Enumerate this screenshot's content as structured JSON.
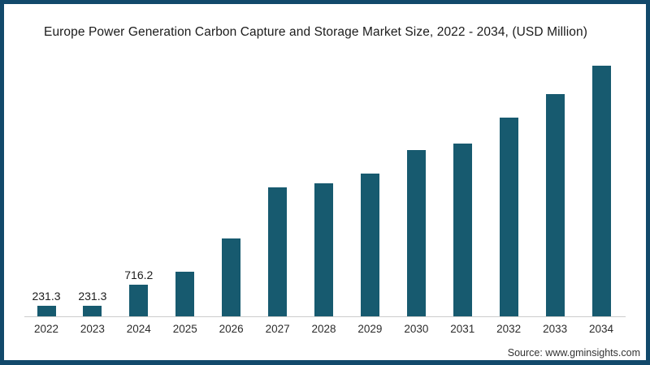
{
  "title": "Europe Power Generation Carbon Capture and Storage Market Size, 2022 - 2034, (USD Million)",
  "source_note": "Source: www.gminsights.com",
  "colors": {
    "bar": "#175a6f",
    "frame": "#12496b",
    "axis_line": "#cccccc",
    "background": "#ffffff",
    "title_text": "#1b1b1b"
  },
  "chart_data": {
    "type": "bar",
    "title": "Europe Power Generation Carbon Capture and Storage Market Size, 2022 - 2034, (USD Million)",
    "categories": [
      "2022",
      "2023",
      "2024",
      "2025",
      "2026",
      "2027",
      "2028",
      "2029",
      "2030",
      "2031",
      "2032",
      "2033",
      "2034"
    ],
    "values": [
      231.3,
      231.3,
      716.2,
      1010,
      1765,
      2920,
      3030,
      3250,
      3770,
      3920,
      4520,
      5040,
      5690
    ],
    "data_labels": [
      "231.3",
      "231.3",
      "716.2",
      "",
      "",
      "",
      "",
      "",
      "",
      "",
      "",
      "",
      ""
    ],
    "xlabel": "",
    "ylabel": "",
    "ylim": [
      0,
      5800
    ],
    "grid": false,
    "legend": false,
    "bar_color": "#175a6f"
  }
}
